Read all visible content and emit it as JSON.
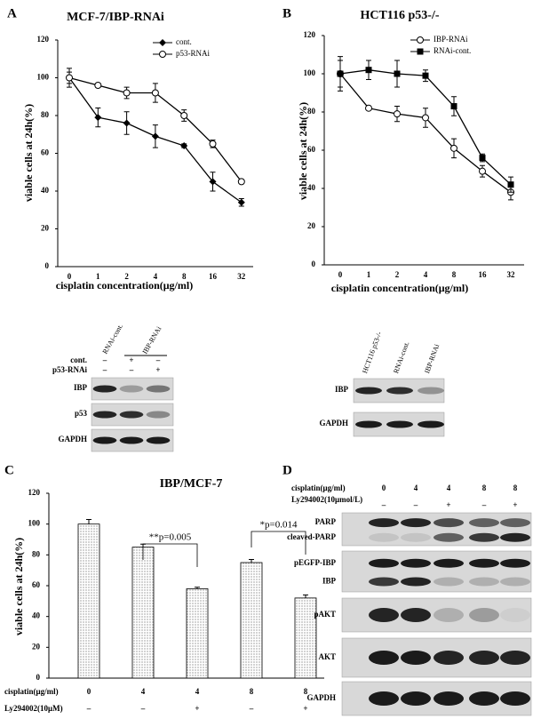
{
  "panels": [
    "A",
    "B",
    "C",
    "D"
  ],
  "chart_data": [
    {
      "type": "line",
      "title": "MCF-7/IBP-RNAi",
      "x_label": "cisplatin concentration(μg/ml)",
      "y_label": "viable cells at 24h(%)",
      "categories": [
        "0",
        "1",
        "2",
        "4",
        "8",
        "16",
        "32"
      ],
      "series": [
        {
          "name": "cont.",
          "color": "#000000",
          "marker": "diamond",
          "values": [
            100,
            79,
            76,
            69,
            64,
            45,
            34
          ],
          "errors": [
            3,
            5,
            6,
            6,
            1,
            5,
            2
          ]
        },
        {
          "name": "p53-RNAi",
          "color": "#000000",
          "marker": "open-circle",
          "values": [
            100,
            96,
            92,
            92,
            80,
            65,
            45
          ],
          "errors": [
            5,
            1,
            3,
            5,
            3,
            2,
            1
          ]
        }
      ],
      "ylim": [
        0,
        120
      ],
      "yticks": [
        0,
        20,
        40,
        60,
        80,
        100,
        120
      ]
    },
    {
      "type": "line",
      "title": "HCT116 p53-/-",
      "x_label": "cisplatin concentration(μg/ml)",
      "y_label": "viable cells at 24h(%)",
      "categories": [
        "0",
        "1",
        "2",
        "4",
        "8",
        "16",
        "32"
      ],
      "series": [
        {
          "name": "IBP-RNAi",
          "color": "#000000",
          "marker": "open-circle",
          "values": [
            100,
            82,
            79,
            77,
            61,
            49,
            38
          ],
          "errors": [
            9,
            1,
            4,
            5,
            5,
            3,
            4
          ]
        },
        {
          "name": "RNAi-cont.",
          "color": "#000000",
          "marker": "square",
          "values": [
            100,
            102,
            100,
            99,
            83,
            56,
            42
          ],
          "errors": [
            7,
            5,
            7,
            3,
            5,
            2,
            4
          ]
        }
      ],
      "ylim": [
        0,
        120
      ],
      "yticks": [
        0,
        20,
        40,
        60,
        80,
        100,
        120
      ]
    },
    {
      "type": "bar",
      "title": "IBP/MCF-7",
      "y_label": "viable cells at 24h(%)",
      "category_label": "cisplatin(μg/ml)",
      "categories": [
        "0",
        "4",
        "4",
        "8",
        "8"
      ],
      "treatment_label": "Ly294002(10μM)",
      "treatment": [
        "–",
        "–",
        "+",
        "–",
        "+"
      ],
      "values": [
        100,
        85,
        58,
        75,
        52
      ],
      "errors": [
        3,
        2,
        1,
        2,
        2
      ],
      "color": "#ffffff",
      "annotations": [
        "**p=0.005",
        "*p=0.014"
      ],
      "ylim": [
        0,
        120
      ],
      "yticks": [
        0,
        20,
        40,
        60,
        80,
        100,
        120
      ]
    }
  ],
  "blot_a": {
    "columns": [
      "RNAi-cont.",
      "IBP-RNAi"
    ],
    "row_labels": [
      "cont.",
      "p53-RNAi"
    ],
    "rows": [
      [
        "–",
        "+",
        "–"
      ],
      [
        "–",
        "–",
        "+"
      ]
    ],
    "bands": [
      "IBP",
      "p53",
      "GAPDH"
    ]
  },
  "blot_b": {
    "columns": [
      "HCT116 p53-/-",
      "RNAi-cont.",
      "IBP-RNAi"
    ],
    "bands": [
      "IBP",
      "GAPDH"
    ]
  },
  "blot_d": {
    "row_labels": [
      "cisplatin(μg/ml)",
      "Ly294002(10μmol/L)"
    ],
    "rows": [
      [
        "0",
        "4",
        "4",
        "8",
        "8"
      ],
      [
        "–",
        "–",
        "+",
        "–",
        "+"
      ]
    ],
    "bands": [
      "PARP",
      "cleaved-PARP",
      "pEGFP-IBP",
      "IBP",
      "pAKT",
      "AKT",
      "GAPDH"
    ]
  }
}
